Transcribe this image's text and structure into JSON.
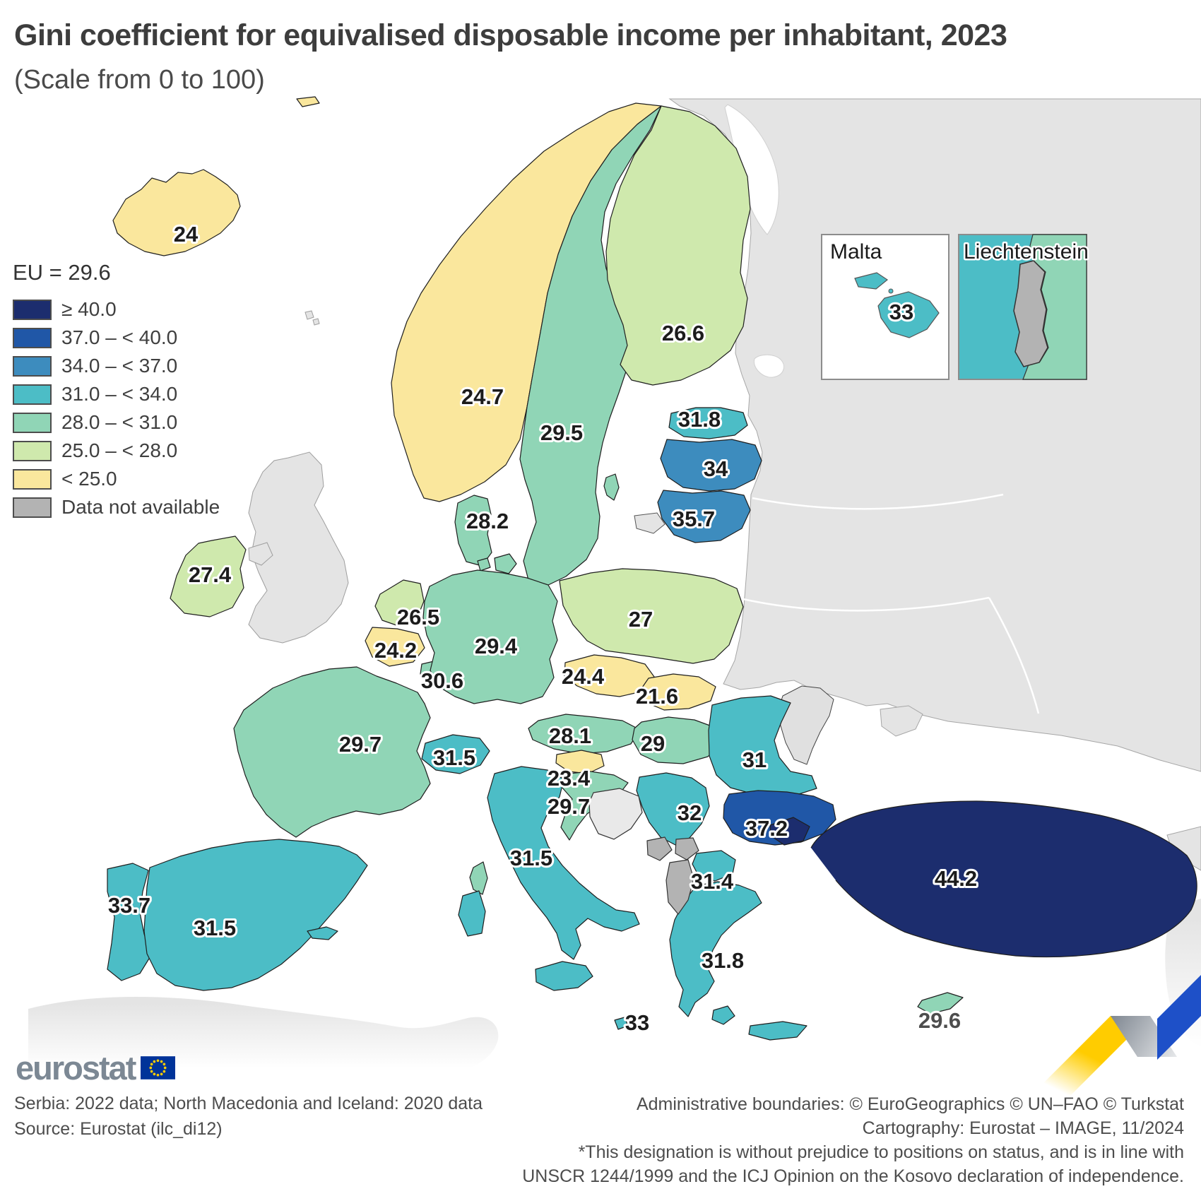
{
  "title": "Gini coefficient for equivalised disposable income per inhabitant, 2023",
  "subtitle": "(Scale from 0 to 100)",
  "legend": {
    "eu_label": "EU = 29.6",
    "classes": [
      {
        "id": "c40",
        "label": "≥ 40.0",
        "color": "#1c2d6e"
      },
      {
        "id": "c37",
        "label": "37.0 – < 40.0",
        "color": "#2057a7"
      },
      {
        "id": "c34",
        "label": "34.0 – < 37.0",
        "color": "#3d8cbe"
      },
      {
        "id": "c31",
        "label": "31.0 – < 34.0",
        "color": "#4cbdc6"
      },
      {
        "id": "c28",
        "label": "28.0 – < 31.0",
        "color": "#90d5b6"
      },
      {
        "id": "c25",
        "label": "25.0 – < 28.0",
        "color": "#cfe9ad"
      },
      {
        "id": "c0",
        "label": "< 25.0",
        "color": "#fae79d"
      },
      {
        "id": "na",
        "label": "Data not available",
        "color": "#b3b3b3"
      }
    ]
  },
  "map": {
    "countries": [
      {
        "id": "iceland",
        "name": "Iceland",
        "value": "24",
        "class": "c0"
      },
      {
        "id": "norway",
        "name": "Norway",
        "value": "24.7",
        "class": "c0"
      },
      {
        "id": "sweden",
        "name": "Sweden",
        "value": "29.5",
        "class": "c28"
      },
      {
        "id": "finland",
        "name": "Finland",
        "value": "26.6",
        "class": "c25"
      },
      {
        "id": "estonia",
        "name": "Estonia",
        "value": "31.8",
        "class": "c31"
      },
      {
        "id": "latvia",
        "name": "Latvia",
        "value": "34",
        "class": "c34"
      },
      {
        "id": "lithuania",
        "name": "Lithuania",
        "value": "35.7",
        "class": "c34"
      },
      {
        "id": "denmark",
        "name": "Denmark",
        "value": "28.2",
        "class": "c28"
      },
      {
        "id": "ireland",
        "name": "Ireland",
        "value": "27.4",
        "class": "c25"
      },
      {
        "id": "netherlands",
        "name": "Netherlands",
        "value": "26.5",
        "class": "c25"
      },
      {
        "id": "belgium",
        "name": "Belgium",
        "value": "24.2",
        "class": "c0"
      },
      {
        "id": "luxembourg",
        "name": "Luxembourg",
        "value": "30.6",
        "class": "c28"
      },
      {
        "id": "germany",
        "name": "Germany",
        "value": "29.4",
        "class": "c28"
      },
      {
        "id": "poland",
        "name": "Poland",
        "value": "27",
        "class": "c25"
      },
      {
        "id": "czechia",
        "name": "Czechia",
        "value": "24.4",
        "class": "c0"
      },
      {
        "id": "slovakia",
        "name": "Slovakia",
        "value": "21.6",
        "class": "c0"
      },
      {
        "id": "austria",
        "name": "Austria",
        "value": "28.1",
        "class": "c28"
      },
      {
        "id": "hungary",
        "name": "Hungary",
        "value": "29",
        "class": "c28"
      },
      {
        "id": "switzerland",
        "name": "Switzerland",
        "value": "31.5",
        "class": "c31"
      },
      {
        "id": "france",
        "name": "France",
        "value": "29.7",
        "class": "c28"
      },
      {
        "id": "slovenia",
        "name": "Slovenia",
        "value": "23.4",
        "class": "c0"
      },
      {
        "id": "croatia",
        "name": "Croatia",
        "value": "29.7",
        "class": "c28"
      },
      {
        "id": "italy",
        "name": "Italy",
        "value": "31.5",
        "class": "c31"
      },
      {
        "id": "portugal",
        "name": "Portugal",
        "value": "33.7",
        "class": "c31"
      },
      {
        "id": "spain",
        "name": "Spain",
        "value": "31.5",
        "class": "c31"
      },
      {
        "id": "romania",
        "name": "Romania",
        "value": "31",
        "class": "c31"
      },
      {
        "id": "serbia",
        "name": "Serbia",
        "value": "32",
        "class": "c31"
      },
      {
        "id": "bulgaria",
        "name": "Bulgaria",
        "value": "37.2",
        "class": "c37"
      },
      {
        "id": "north_macedonia",
        "name": "North Macedonia",
        "value": "31.4",
        "class": "c31"
      },
      {
        "id": "greece",
        "name": "Greece",
        "value": "31.8",
        "class": "c31"
      },
      {
        "id": "turkey",
        "name": "Türkiye",
        "value": "44.2",
        "class": "c40"
      },
      {
        "id": "cyprus",
        "name": "Cyprus",
        "value": "29.6",
        "class": "c28"
      },
      {
        "id": "malta",
        "name": "Malta",
        "value": "33",
        "class": "c31"
      },
      {
        "id": "montenegro",
        "name": "Montenegro",
        "value": null,
        "class": "na"
      },
      {
        "id": "kosovo",
        "name": "Kosovo",
        "value": null,
        "class": "na"
      },
      {
        "id": "albania",
        "name": "Albania",
        "value": null,
        "class": "na"
      }
    ],
    "insets": [
      {
        "id": "malta_inset",
        "title": "Malta",
        "value": "33",
        "class": "c31"
      },
      {
        "id": "liechtenstein_inset",
        "title": "Liechtenstein",
        "value": null,
        "class": "na"
      }
    ]
  },
  "footer": {
    "logo_text": "eurostat",
    "left_lines": [
      "Serbia: 2022 data; North Macedonia and Iceland: 2020 data",
      "Source: Eurostat (ilc_di12)"
    ],
    "right_lines": [
      "Administrative boundaries: © EuroGeographics © UN–FAO © Turkstat",
      "Cartography: Eurostat – IMAGE, 11/2024",
      "*This designation is without prejudice to positions on status, and is in line with",
      "UNSCR 1244/1999 and the ICJ Opinion on the Kosovo declaration of independence."
    ]
  }
}
